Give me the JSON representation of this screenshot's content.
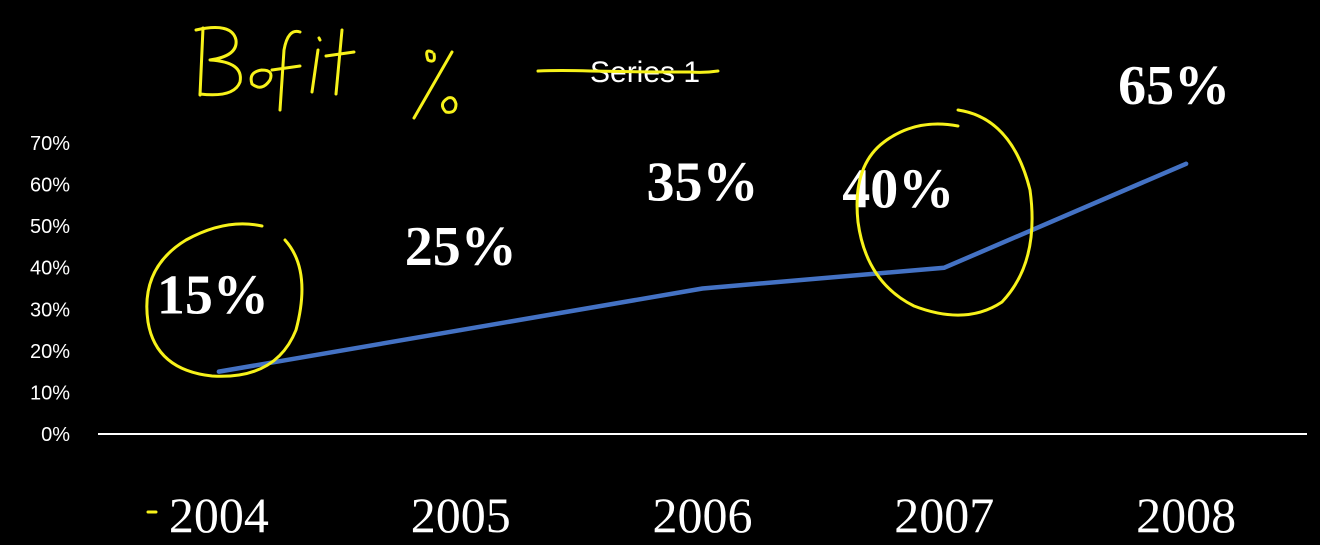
{
  "chart_data": {
    "type": "line",
    "categories": [
      "2004",
      "2005",
      "2006",
      "2007",
      "2008"
    ],
    "series": [
      {
        "name": "Series 1",
        "values": [
          0.15,
          0.25,
          0.35,
          0.4,
          0.65
        ],
        "color": "#4472c4"
      }
    ],
    "data_labels": [
      "15%",
      "25%",
      "35%",
      "40%",
      "65%"
    ],
    "yticks": [
      "0%",
      "10%",
      "20%",
      "30%",
      "40%",
      "50%",
      "60%",
      "70%"
    ],
    "ylim": [
      0,
      0.7
    ],
    "legend": {
      "position": "top",
      "text": "Series 1"
    },
    "handwritten_title": "Profit %",
    "annotations": {
      "circled_labels": [
        "15%",
        "40%"
      ],
      "strikethrough": "Series 1",
      "color": "#f7f21a"
    },
    "grid": false,
    "background": "#000000"
  }
}
